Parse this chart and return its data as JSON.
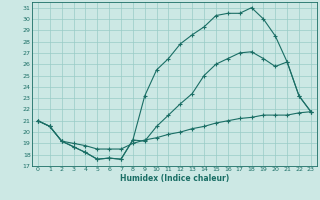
{
  "xlabel": "Humidex (Indice chaleur)",
  "bg_color": "#cce8e4",
  "line_color": "#1a6e65",
  "grid_color": "#99ccc6",
  "xlim": [
    -0.5,
    23.5
  ],
  "ylim": [
    17,
    31.5
  ],
  "xticks": [
    0,
    1,
    2,
    3,
    4,
    5,
    6,
    7,
    8,
    9,
    10,
    11,
    12,
    13,
    14,
    15,
    16,
    17,
    18,
    19,
    20,
    21,
    22,
    23
  ],
  "yticks": [
    17,
    18,
    19,
    20,
    21,
    22,
    23,
    24,
    25,
    26,
    27,
    28,
    29,
    30,
    31
  ],
  "line1_x": [
    0,
    1,
    2,
    3,
    4,
    5,
    6,
    7,
    8,
    9,
    10,
    11,
    12,
    13,
    14,
    15,
    16,
    17,
    18,
    19,
    20,
    21,
    22,
    23
  ],
  "line1_y": [
    21.0,
    20.5,
    19.2,
    18.7,
    18.2,
    17.6,
    17.7,
    17.6,
    19.3,
    19.2,
    20.5,
    21.5,
    22.5,
    23.4,
    25.0,
    26.0,
    26.5,
    27.0,
    27.1,
    26.5,
    25.8,
    26.2,
    23.2,
    21.8
  ],
  "line2_x": [
    0,
    1,
    2,
    3,
    4,
    5,
    6,
    7,
    8,
    9,
    10,
    11,
    12,
    13,
    14,
    15,
    16,
    17,
    18,
    19,
    20,
    21,
    22,
    23
  ],
  "line2_y": [
    21.0,
    20.5,
    19.2,
    18.7,
    18.2,
    17.6,
    17.7,
    17.6,
    19.3,
    23.2,
    25.5,
    26.5,
    27.8,
    28.6,
    29.3,
    30.3,
    30.5,
    30.5,
    31.0,
    30.0,
    28.5,
    26.2,
    23.2,
    21.8
  ],
  "line3_x": [
    0,
    1,
    2,
    3,
    4,
    5,
    6,
    7,
    8,
    9,
    10,
    11,
    12,
    13,
    14,
    15,
    16,
    17,
    18,
    19,
    20,
    21,
    22,
    23
  ],
  "line3_y": [
    21.0,
    20.5,
    19.2,
    19.0,
    18.8,
    18.5,
    18.5,
    18.5,
    19.0,
    19.3,
    19.5,
    19.8,
    20.0,
    20.3,
    20.5,
    20.8,
    21.0,
    21.2,
    21.3,
    21.5,
    21.5,
    21.5,
    21.7,
    21.8
  ]
}
